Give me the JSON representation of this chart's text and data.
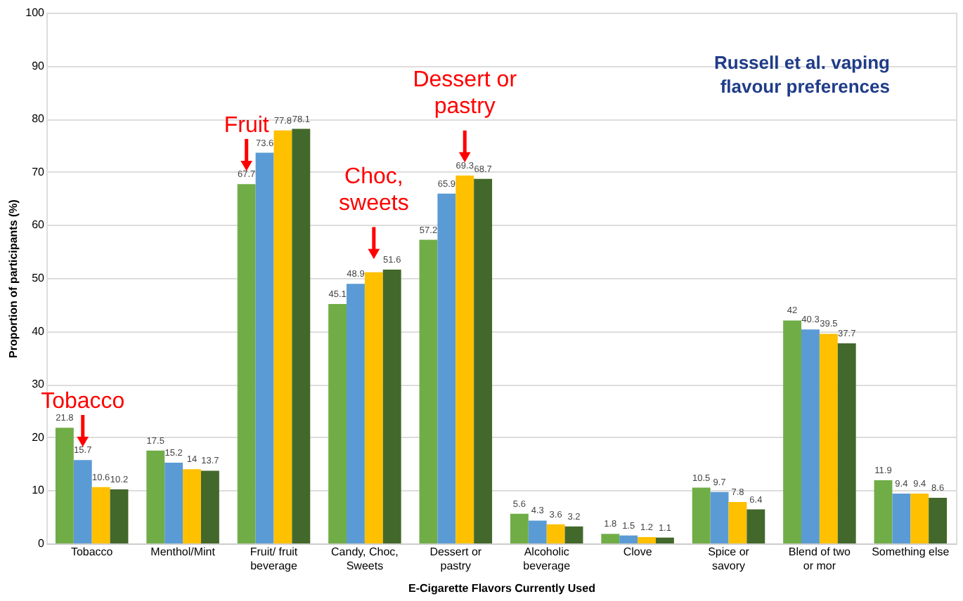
{
  "chart_data": {
    "type": "bar",
    "categories": [
      "Tobacco",
      "Menthol/Mint",
      "Fruit/ fruit beverage",
      "Candy, Choc, Sweets",
      "Dessert or pastry",
      "Alcoholic beverage",
      "Clove",
      "Spice or savory",
      "Blend of two or mor",
      "Something else"
    ],
    "series": [
      {
        "color": "#70ad47",
        "values": [
          21.8,
          17.5,
          67.7,
          45.1,
          57.2,
          5.6,
          1.8,
          10.5,
          42,
          11.9
        ],
        "value_labels": [
          "21.8",
          "17.5",
          "67.7",
          "45.1",
          "57.2",
          "5.6",
          "1.8",
          "10.5",
          "42",
          "11.9"
        ]
      },
      {
        "color": "#5b9bd5",
        "values": [
          15.7,
          15.2,
          73.6,
          48.9,
          65.9,
          4.3,
          1.5,
          9.7,
          40.3,
          9.4
        ],
        "value_labels": [
          "15.7",
          "15.2",
          "73.6",
          "48.9",
          "65.9",
          "4.3",
          "1.5",
          "9.7",
          "40.3",
          "9.4"
        ]
      },
      {
        "color": "#ffc000",
        "values": [
          10.6,
          14,
          77.8,
          51.1,
          69.3,
          3.6,
          1.2,
          7.8,
          39.5,
          9.4
        ],
        "value_labels": [
          "10.6",
          "14",
          "77.8",
          null,
          "69.3",
          "3.6",
          "1.2",
          "7.8",
          "39.5",
          "9.4"
        ]
      },
      {
        "color": "#43682b",
        "values": [
          10.2,
          13.7,
          78.1,
          51.6,
          68.7,
          3.2,
          1.1,
          6.4,
          37.7,
          8.6
        ],
        "value_labels": [
          "10.2",
          "13.7",
          "78.1",
          "51.6",
          "68.7",
          "3.2",
          "1.1",
          "6.4",
          "37.7",
          "8.6"
        ]
      }
    ],
    "xlabel": "E-Cigarette Flavors Currently Used",
    "ylabel": "Proportion of participants (%)",
    "ylim": [
      0,
      100
    ],
    "yticks": [
      0,
      10,
      20,
      30,
      40,
      50,
      60,
      70,
      80,
      90,
      100
    ],
    "grid": "y",
    "legend": false,
    "annotations": [
      {
        "text": "Tobacco",
        "x": "Tobacco",
        "y": 15.7
      },
      {
        "text": "Fruit",
        "x": "Fruit/ fruit beverage",
        "y": 67.7
      },
      {
        "text": "Choc, sweets",
        "x": "Candy, Choc, Sweets",
        "y": 51.1
      },
      {
        "text": "Dessert or pastry",
        "x": "Dessert or pastry",
        "y": 69.3
      },
      "Russell et al. vaping flavour preferences"
    ]
  }
}
